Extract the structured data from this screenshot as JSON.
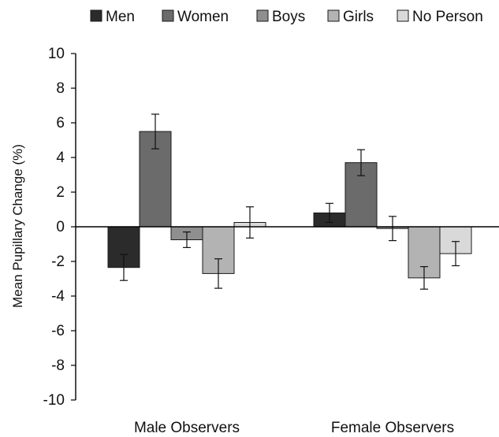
{
  "chart_data": {
    "type": "bar",
    "title": "",
    "xlabel": "",
    "ylabel": "Mean Pupillary Change (%)",
    "ylim": [
      -10,
      10
    ],
    "yticks": [
      -10,
      -8,
      -6,
      -4,
      -2,
      0,
      2,
      4,
      6,
      8,
      10
    ],
    "categories": [
      "Male Observers",
      "Female Observers"
    ],
    "legend_position": "top",
    "grid": false,
    "series": [
      {
        "name": "Men",
        "color": "#2b2b2b",
        "values": [
          -2.35,
          0.8
        ],
        "errors": [
          0.75,
          0.55
        ]
      },
      {
        "name": "Women",
        "color": "#6b6b6b",
        "values": [
          5.5,
          3.7
        ],
        "errors": [
          1.0,
          0.75
        ]
      },
      {
        "name": "Boys",
        "color": "#8f8f8f",
        "values": [
          -0.75,
          -0.1
        ],
        "errors": [
          0.45,
          0.7
        ]
      },
      {
        "name": "Girls",
        "color": "#b3b3b3",
        "values": [
          -2.7,
          -2.95
        ],
        "errors": [
          0.85,
          0.65
        ]
      },
      {
        "name": "No Person",
        "color": "#d9d9d9",
        "values": [
          0.25,
          -1.55
        ],
        "errors": [
          0.9,
          0.7
        ]
      }
    ]
  }
}
